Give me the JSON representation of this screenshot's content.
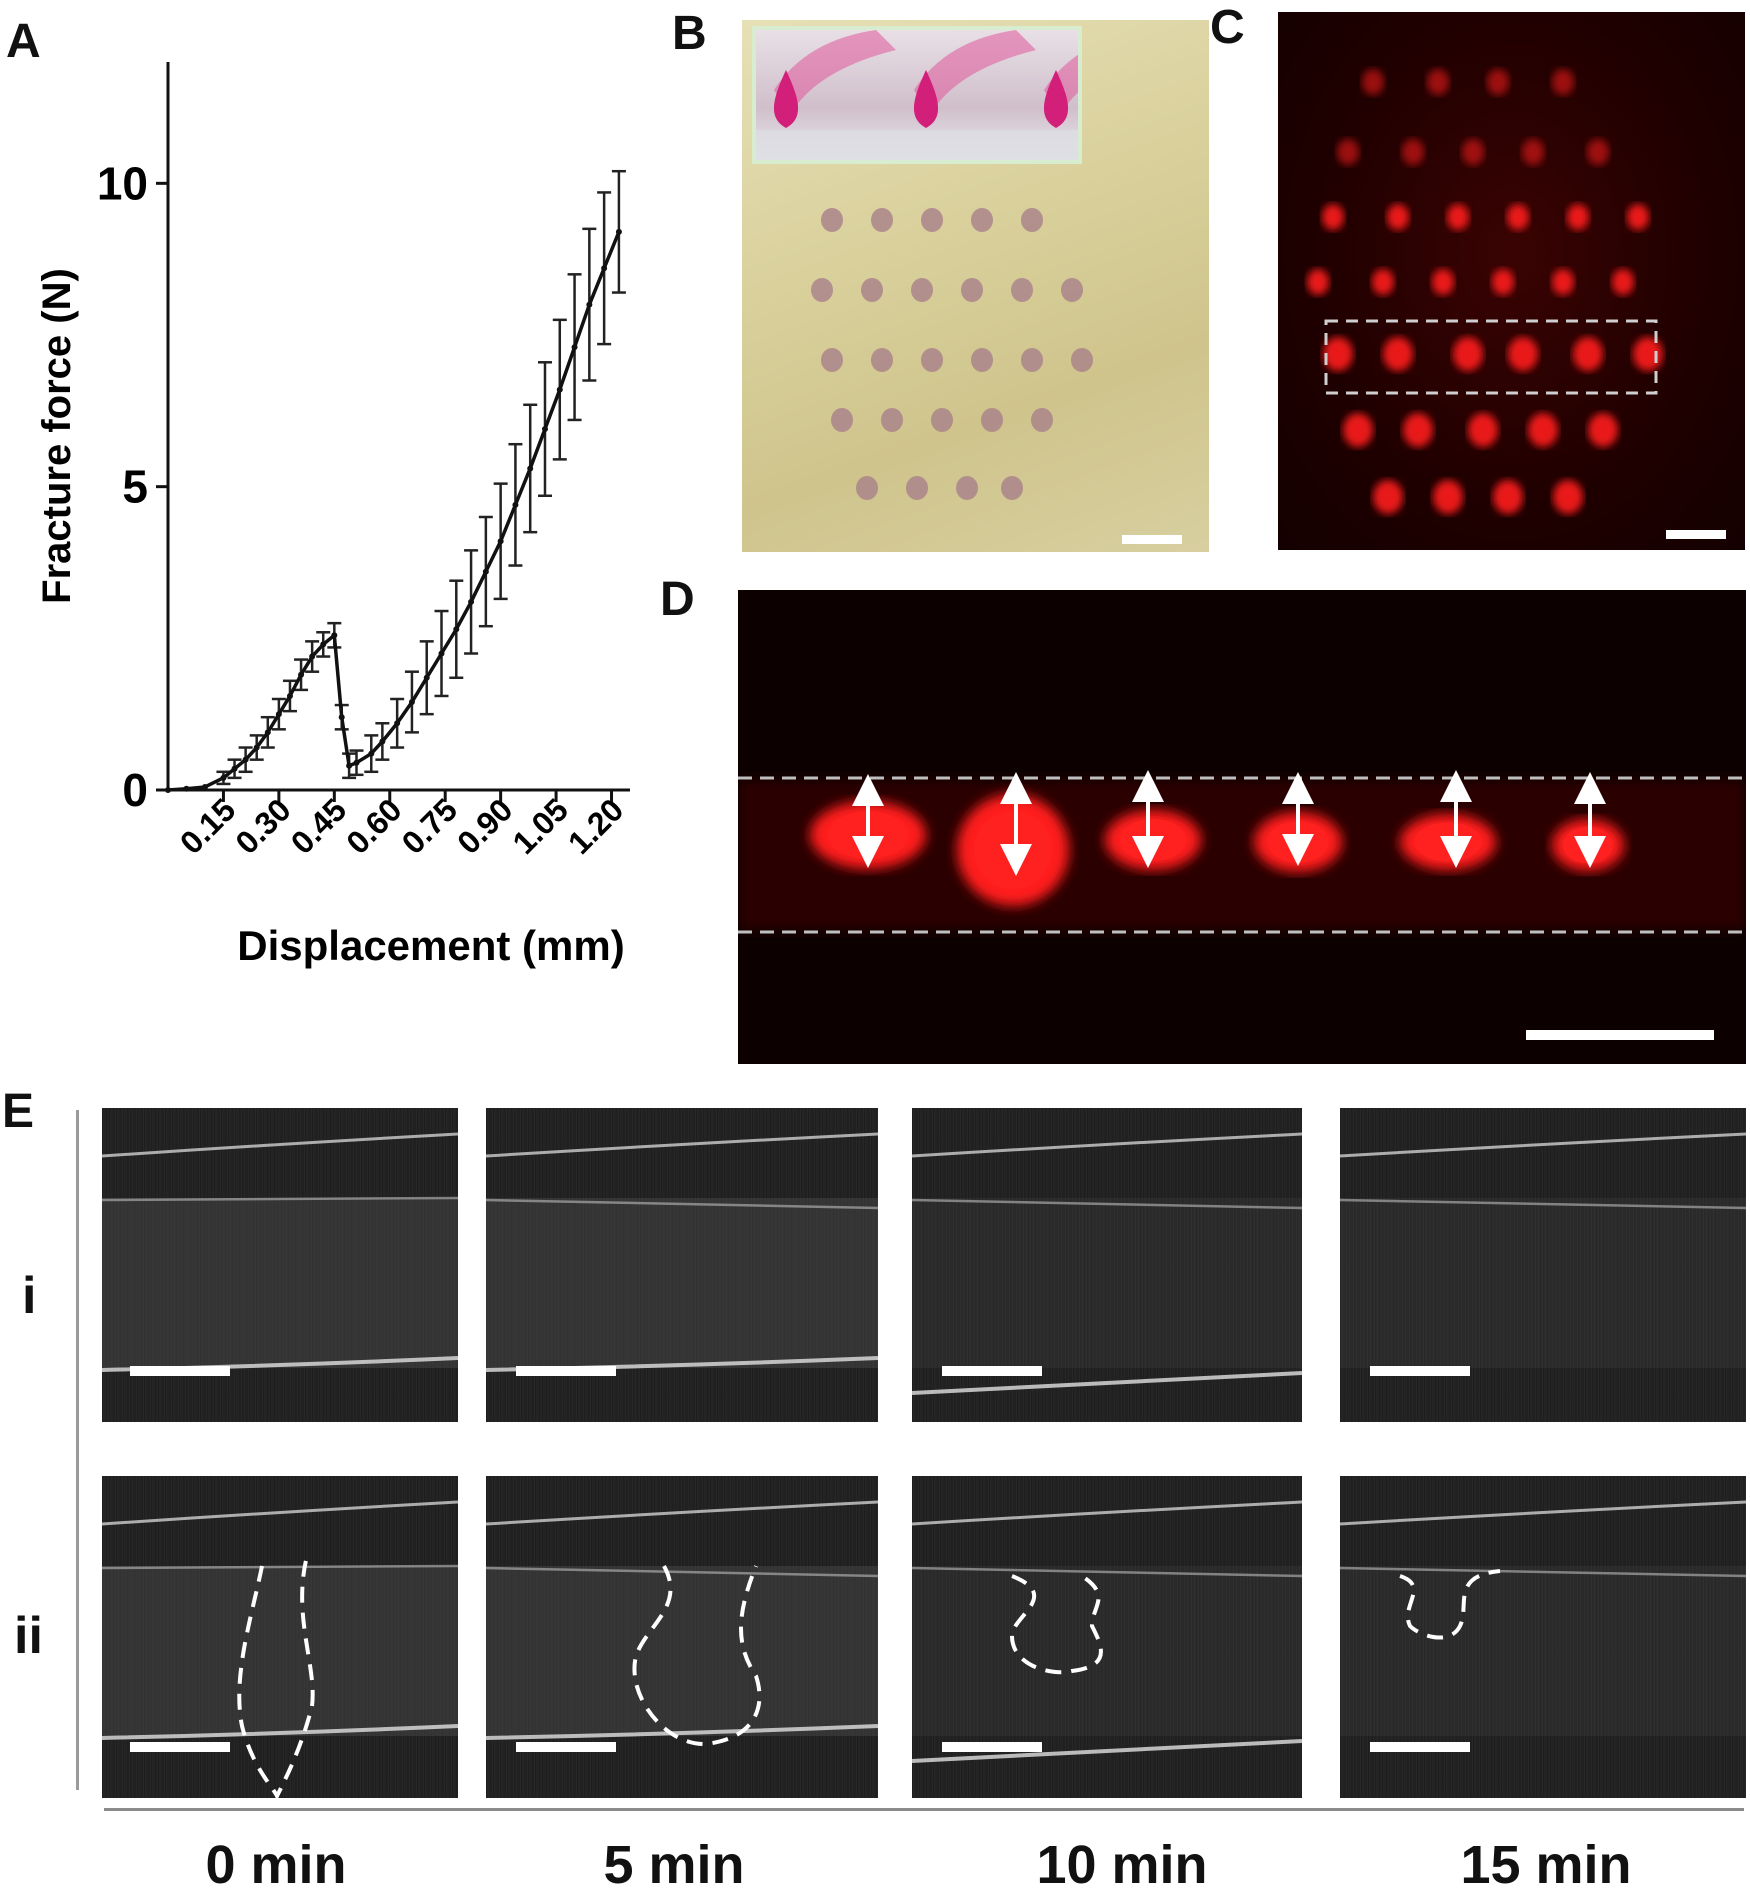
{
  "panels": {
    "A": "A",
    "B": "B",
    "C": "C",
    "D": "D",
    "E": "E"
  },
  "panel_e": {
    "row_labels": [
      "i",
      "ii"
    ],
    "time_labels": [
      "0 min",
      "5 min",
      "10 min",
      "15 min"
    ]
  },
  "colors": {
    "fluorescence": "#ff1a1a",
    "fluor_background": "#1a0000",
    "skin": "#d9d0a0",
    "oct_background": "#1e1e1e",
    "dashed_outline": "#ffffff"
  },
  "chart_data": {
    "type": "line",
    "xlabel": "Displacement (mm)",
    "ylabel": "Fracture force (N)",
    "xlim": [
      0,
      1.25
    ],
    "ylim": [
      0,
      12
    ],
    "x_ticks": [
      "0.15",
      "0.30",
      "0.45",
      "0.60",
      "0.75",
      "0.90",
      "1.05",
      "1.20"
    ],
    "x_tick_values": [
      0.15,
      0.3,
      0.45,
      0.6,
      0.75,
      0.9,
      1.05,
      1.2
    ],
    "y_ticks": [
      "0",
      "5",
      "10"
    ],
    "y_tick_values": [
      0,
      5,
      10
    ],
    "grid": false,
    "x": [
      0.0,
      0.05,
      0.1,
      0.15,
      0.18,
      0.21,
      0.24,
      0.27,
      0.3,
      0.33,
      0.36,
      0.39,
      0.42,
      0.45,
      0.47,
      0.49,
      0.51,
      0.55,
      0.58,
      0.62,
      0.66,
      0.7,
      0.74,
      0.78,
      0.82,
      0.86,
      0.9,
      0.94,
      0.98,
      1.02,
      1.06,
      1.1,
      1.14,
      1.18,
      1.22
    ],
    "y": [
      0.0,
      0.02,
      0.05,
      0.2,
      0.35,
      0.5,
      0.7,
      0.95,
      1.25,
      1.55,
      1.9,
      2.2,
      2.4,
      2.55,
      1.2,
      0.4,
      0.45,
      0.6,
      0.8,
      1.1,
      1.45,
      1.85,
      2.25,
      2.65,
      3.1,
      3.6,
      4.1,
      4.7,
      5.3,
      5.95,
      6.6,
      7.3,
      8.0,
      8.6,
      9.2
    ],
    "error": [
      0,
      0,
      0,
      0.1,
      0.15,
      0.2,
      0.2,
      0.25,
      0.25,
      0.25,
      0.25,
      0.25,
      0.2,
      0.2,
      0.2,
      0.2,
      0.2,
      0.3,
      0.3,
      0.4,
      0.5,
      0.6,
      0.7,
      0.8,
      0.85,
      0.9,
      0.95,
      1.0,
      1.05,
      1.1,
      1.15,
      1.2,
      1.25,
      1.25,
      1.0
    ]
  }
}
